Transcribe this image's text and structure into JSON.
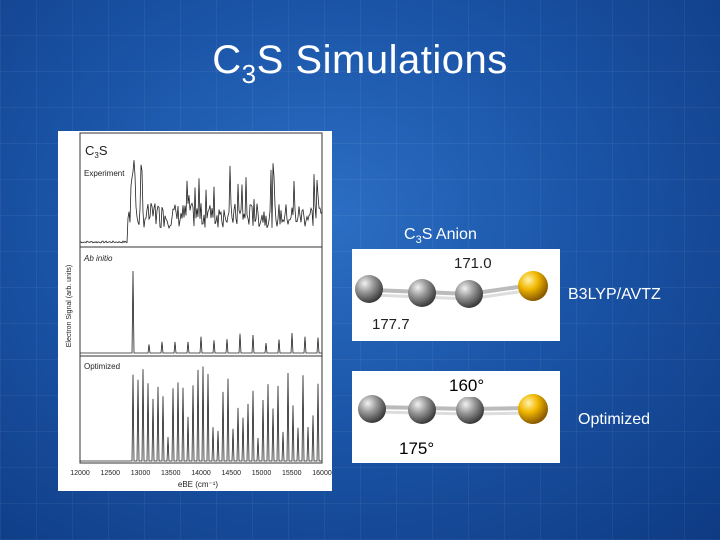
{
  "slide": {
    "title_main": "C",
    "title_sub": "3",
    "title_rest": "S Simulations",
    "background_color": "#1b55a8"
  },
  "spectrum_figure": {
    "panel_experiment_label_main": "C",
    "panel_experiment_label_sub": "3",
    "panel_experiment_label_rest": "S",
    "panel_experiment_label2": "Experiment",
    "panel_abinitio_label": "Ab initio",
    "panel_optimized_label": "Optimized",
    "ylabel": "Electron Signal (arb. units)",
    "xlabel": "eBE (cm⁻¹)",
    "x_ticks": [
      "12000",
      "12500",
      "13000",
      "13500",
      "14000",
      "14500",
      "15000",
      "15500",
      "16000"
    ]
  },
  "anion": {
    "label_main": "C",
    "label_sub": "3",
    "label_rest": "S Anion",
    "method_label": "B3LYP/AVTZ",
    "angle_top": "171.0",
    "angle_bottom": "177.7"
  },
  "optimized": {
    "label": "Optimized",
    "angle_top": "160°",
    "angle_bottom": "175°"
  },
  "colors": {
    "carbon": "#8a8a8a",
    "sulfur": "#f0b400"
  }
}
